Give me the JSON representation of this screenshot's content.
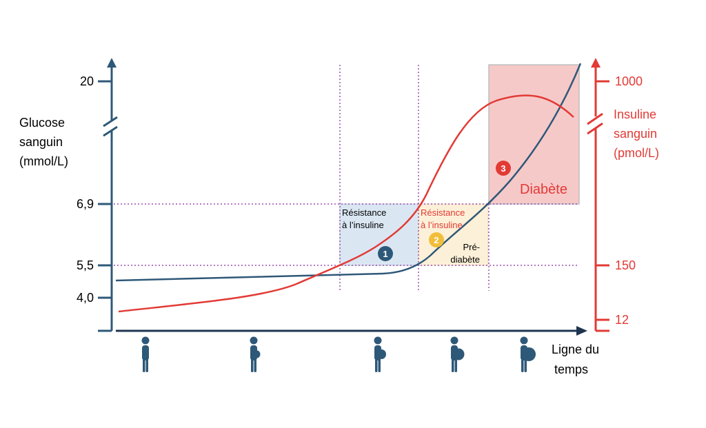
{
  "colors": {
    "glucose": "#2e5878",
    "insulin": "#e23a35",
    "guide": "#9b4fb0",
    "zone1": "#dae7f3",
    "zone2": "#fdf0d8",
    "zone3": "#f6c9c9",
    "badge2": "#f0be3a",
    "figure": "#2e5878",
    "timeline": "#1e3450"
  },
  "left_axis": {
    "title_line1": "Glucose",
    "title_line2": "sanguin",
    "title_line3": "(mmol/L)",
    "ticks": [
      "20",
      "6,9",
      "5,5",
      "4,0"
    ]
  },
  "right_axis": {
    "title_line1": "Insuline",
    "title_line2": "sanguin",
    "title_line3": "(pmol/L)",
    "ticks": [
      "1000",
      "150",
      "12"
    ]
  },
  "time_axis": {
    "title_line1": "Ligne du",
    "title_line2": "temps"
  },
  "zones": {
    "z1_label_line1": "Résistance",
    "z1_label_line2": "à l’insuline",
    "z1_badge": "1",
    "z2_label_line1": "Résistance",
    "z2_label_line2": "à l’insuline",
    "z2_sub_line1": "Pré-",
    "z2_sub_line2": "diabète",
    "z2_badge": "2",
    "z3_label": "Diabète",
    "z3_badge": "3"
  },
  "figures": [
    {
      "icon": "person-slim-icon",
      "belly": 0
    },
    {
      "icon": "person-belly-small-icon",
      "belly": 0.25
    },
    {
      "icon": "person-belly-medium-icon",
      "belly": 0.5
    },
    {
      "icon": "person-belly-large-icon",
      "belly": 0.75
    },
    {
      "icon": "person-belly-xlarge-icon",
      "belly": 1
    }
  ]
}
